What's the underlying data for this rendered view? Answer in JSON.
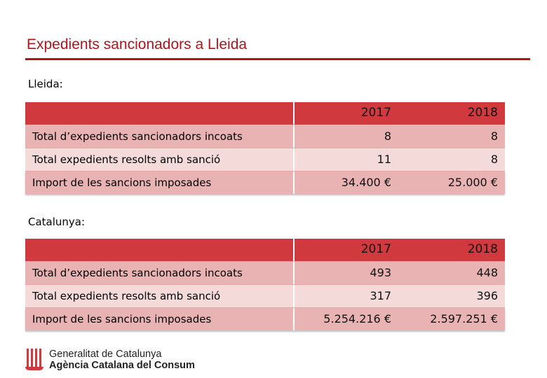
{
  "header": {
    "title": "Expedients sancionadors a Lleida"
  },
  "sections": [
    {
      "label": "Lleida:",
      "years": [
        "2017",
        "2018"
      ],
      "rows": [
        {
          "label": "Total d’expedients sancionadors incoats",
          "v2017": "8",
          "v2018": "8"
        },
        {
          "label": "Total expedients resolts amb sanció",
          "v2017": "11",
          "v2018": "8"
        },
        {
          "label": "Import de les sancions imposades",
          "v2017": "34.400 €",
          "v2018": "25.000 €"
        }
      ]
    },
    {
      "label": "Catalunya:",
      "years": [
        "2017",
        "2018"
      ],
      "rows": [
        {
          "label": "Total d’expedients sancionadors incoats",
          "v2017": "493",
          "v2018": "448"
        },
        {
          "label": "Total expedients resolts amb sanció",
          "v2017": "317",
          "v2018": "396"
        },
        {
          "label": "Import de les sancions imposades",
          "v2017": "5.254.216 €",
          "v2018": "2.597.251 €"
        }
      ]
    }
  ],
  "footer": {
    "org_line1": "Generalitat de Catalunya",
    "org_line2": "Agència Catalana del Consum",
    "logo_icon": "senyera-emblem-icon"
  },
  "colors": {
    "accent": "#b5121b",
    "header_row": "#d0393d",
    "row_dark": "#e9b3b4",
    "row_light": "#f5dada"
  }
}
